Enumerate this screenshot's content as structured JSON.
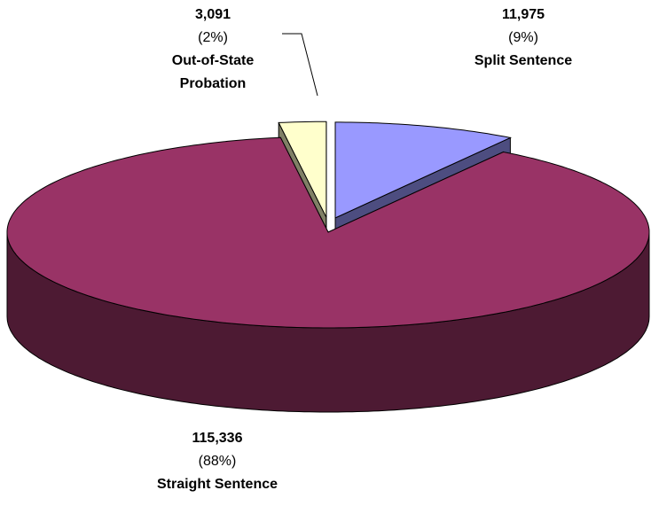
{
  "chart_data": {
    "type": "pie",
    "categories": [
      "Out-of-State Probation",
      "Split Sentence",
      "Straight Sentence"
    ],
    "values": [
      3091,
      11975,
      115336
    ],
    "value_labels": [
      "3,091",
      "11,975",
      "115,336"
    ],
    "percent_labels": [
      "(2%)",
      "(9%)",
      "(88%)"
    ],
    "colors": [
      "#ffffcc",
      "#9999ff",
      "#993366"
    ]
  }
}
